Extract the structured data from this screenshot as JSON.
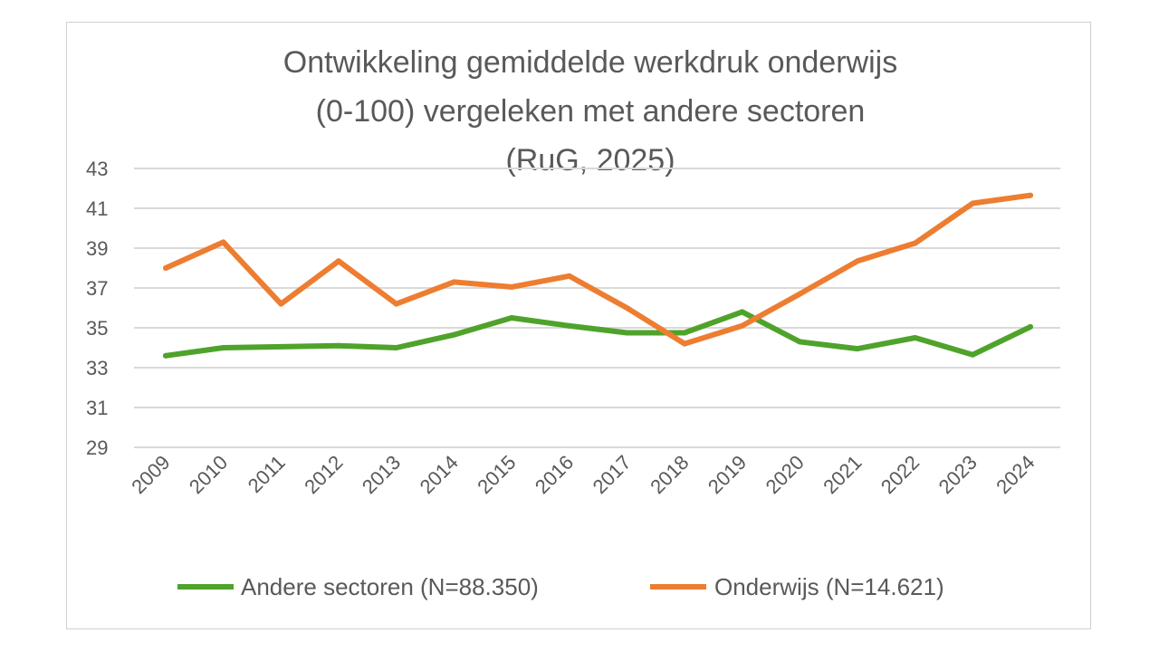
{
  "chart_data": {
    "type": "line",
    "title_lines": [
      "Ontwikkeling gemiddelde werkdruk onderwijs",
      "(0-100) vergeleken met andere sectoren",
      "(RuG, 2025)"
    ],
    "xlabel": "",
    "ylabel": "",
    "x": [
      "2009",
      "2010",
      "2011",
      "2012",
      "2013",
      "2014",
      "2015",
      "2016",
      "2017",
      "2018",
      "2019",
      "2020",
      "2021",
      "2022",
      "2023",
      "2024"
    ],
    "yticks": [
      29,
      31,
      33,
      35,
      37,
      39,
      41,
      43
    ],
    "ylim": [
      29,
      43
    ],
    "grid": true,
    "legend_position": "bottom",
    "series": [
      {
        "name": "Andere sectoren (N=88.350)",
        "color": "#4fa32b",
        "values": [
          33.6,
          34.0,
          34.05,
          34.1,
          34.0,
          34.65,
          35.5,
          35.1,
          34.75,
          34.75,
          35.8,
          34.3,
          33.95,
          34.5,
          33.65,
          35.05
        ]
      },
      {
        "name": "Onderwijs (N=14.621)",
        "color": "#ed7d31",
        "values": [
          38.0,
          39.3,
          36.2,
          38.35,
          36.2,
          37.3,
          37.05,
          37.6,
          36.0,
          34.2,
          35.1,
          36.7,
          38.35,
          39.25,
          41.25,
          41.65
        ]
      }
    ]
  }
}
